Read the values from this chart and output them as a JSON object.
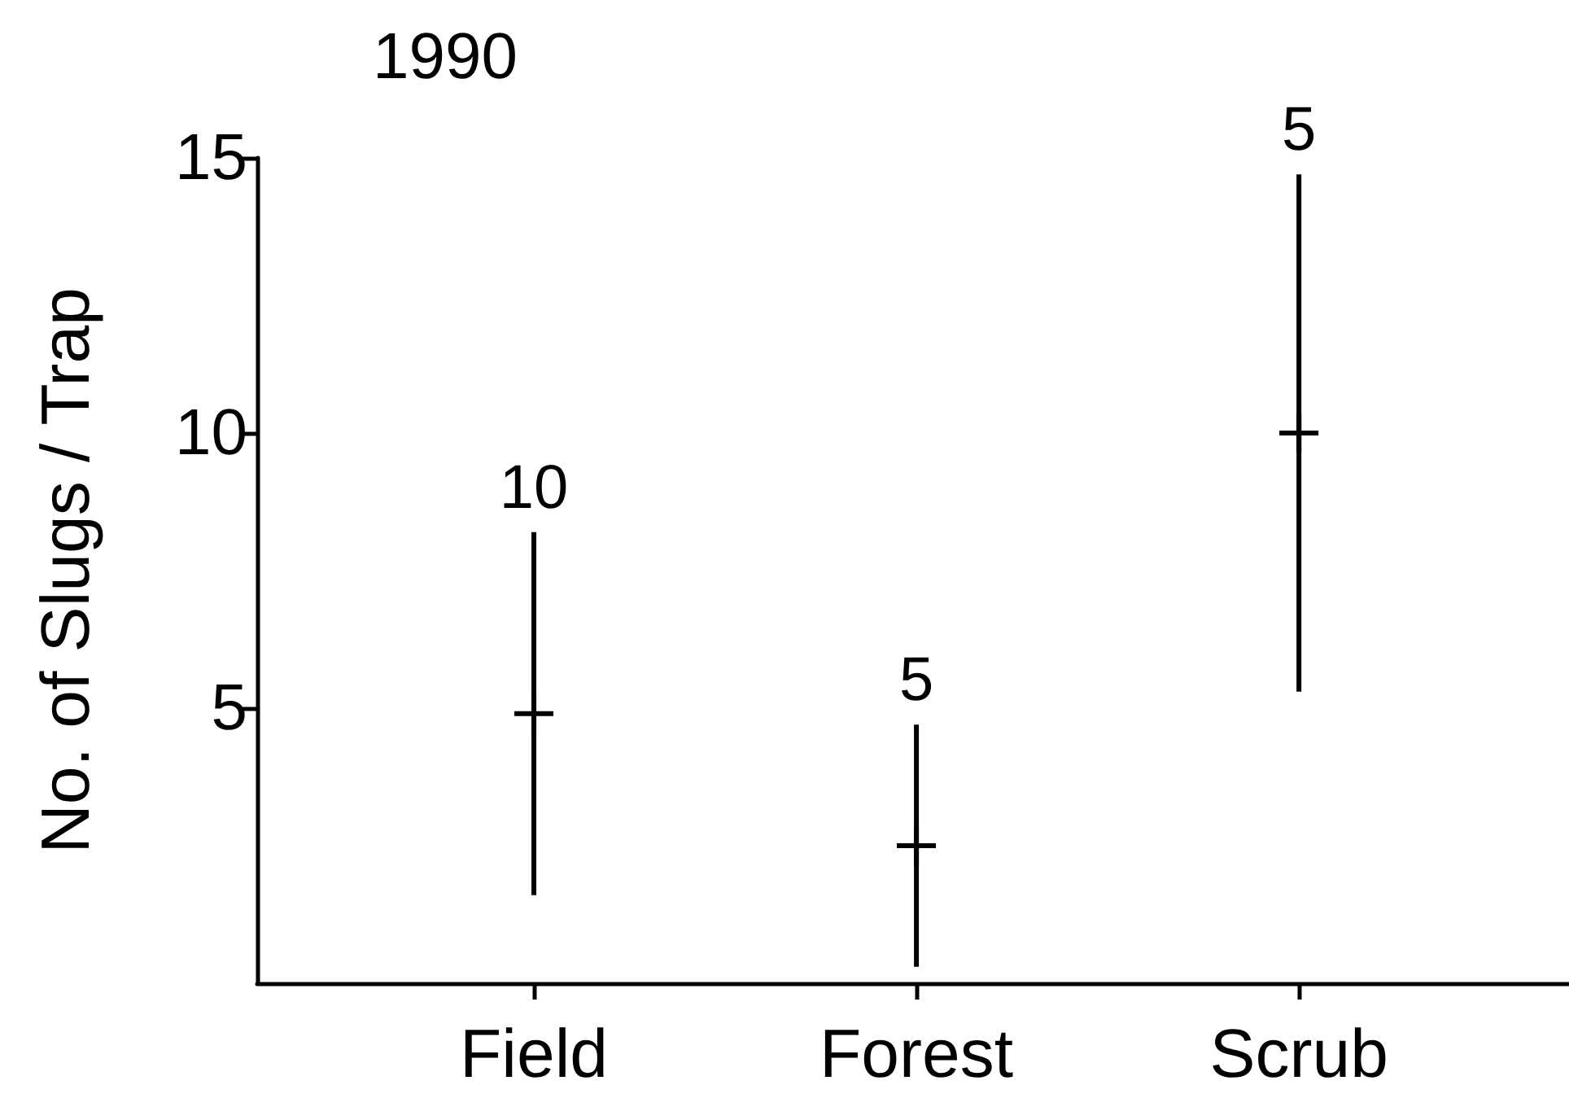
{
  "chart_data": {
    "type": "scatter",
    "title": "1990",
    "ylabel": "No. of Slugs / Trap",
    "categories": [
      "Field",
      "Forest",
      "Scrub"
    ],
    "values": [
      4.9,
      2.5,
      10
    ],
    "errors": [
      3.3,
      2.2,
      4.7
    ],
    "color": "#000000",
    "marker": "cross",
    "ylim": [
      0,
      15
    ],
    "yticks": [
      5,
      10,
      15
    ],
    "annotations": [
      {
        "text": "10",
        "x": "Field",
        "y": 8.2
      },
      {
        "text": "5",
        "x": "Forest",
        "y": 4.7
      },
      {
        "text": "5",
        "x": "Scrub",
        "y": 14.7
      }
    ]
  }
}
